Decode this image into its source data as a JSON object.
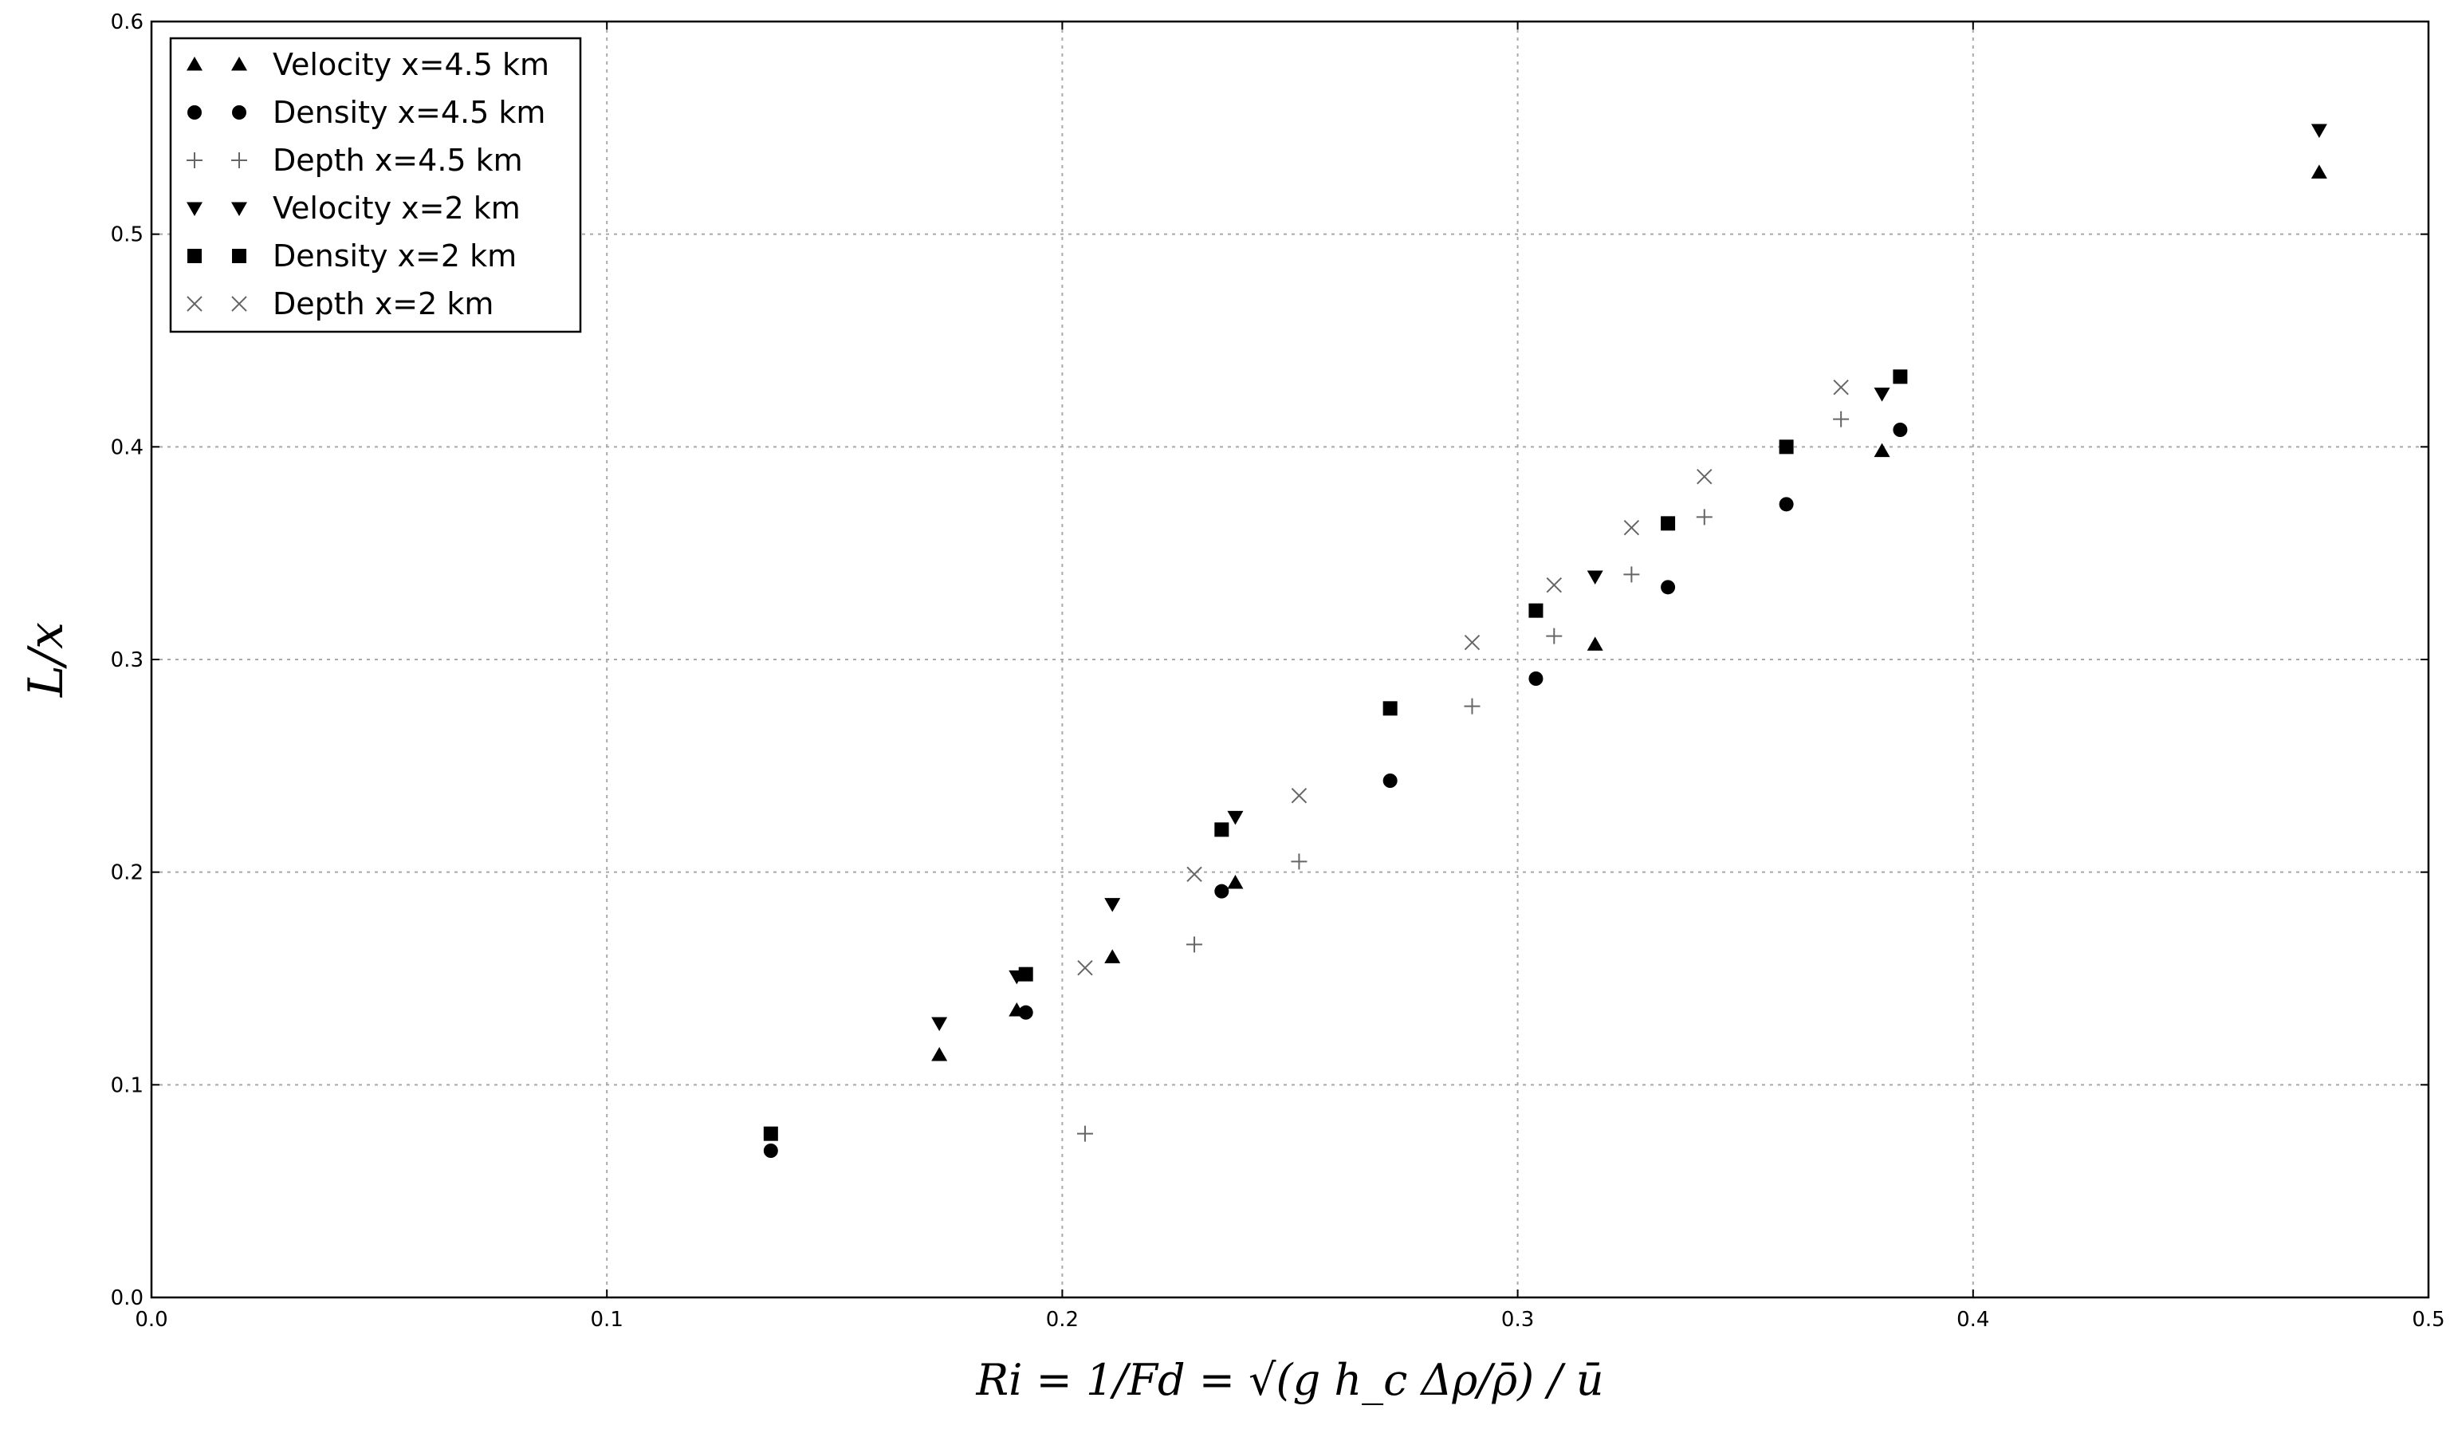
{
  "chart_data": {
    "type": "scatter",
    "title": "",
    "xlabel": "Ri = 1/Fd = √(g h_c Δρ/ρ̄) / ū",
    "ylabel": "L/x",
    "xlim": [
      0.0,
      0.5
    ],
    "ylim": [
      0.0,
      0.6
    ],
    "xticks": [
      "0.0",
      "0.1",
      "0.2",
      "0.3",
      "0.4",
      "0.5"
    ],
    "yticks": [
      "0.0",
      "0.1",
      "0.2",
      "0.3",
      "0.4",
      "0.5",
      "0.6"
    ],
    "grid": true,
    "legend_position": "top-left",
    "colors": {
      "markers": "#000000",
      "light_markers": "#666666",
      "grid": "#a9a9a9"
    },
    "series": [
      {
        "name": "Velocity x=4.5 km",
        "marker": "triangle-up",
        "points": [
          [
            0.173,
            0.114
          ],
          [
            0.19,
            0.135
          ],
          [
            0.211,
            0.16
          ],
          [
            0.238,
            0.195
          ],
          [
            0.317,
            0.307
          ],
          [
            0.38,
            0.398
          ],
          [
            0.476,
            0.529
          ]
        ]
      },
      {
        "name": "Density x=4.5 km",
        "marker": "circle",
        "points": [
          [
            0.136,
            0.069
          ],
          [
            0.192,
            0.134
          ],
          [
            0.235,
            0.191
          ],
          [
            0.272,
            0.243
          ],
          [
            0.304,
            0.291
          ],
          [
            0.333,
            0.334
          ],
          [
            0.359,
            0.373
          ],
          [
            0.384,
            0.408
          ]
        ]
      },
      {
        "name": "Depth x=4.5 km",
        "marker": "plus",
        "points": [
          [
            0.205,
            0.077
          ],
          [
            0.229,
            0.166
          ],
          [
            0.252,
            0.205
          ],
          [
            0.29,
            0.278
          ],
          [
            0.308,
            0.311
          ],
          [
            0.325,
            0.34
          ],
          [
            0.341,
            0.367
          ],
          [
            0.371,
            0.413
          ]
        ]
      },
      {
        "name": "Velocity x=2 km",
        "marker": "triangle-down",
        "points": [
          [
            0.173,
            0.129
          ],
          [
            0.19,
            0.151
          ],
          [
            0.211,
            0.185
          ],
          [
            0.238,
            0.226
          ],
          [
            0.317,
            0.339
          ],
          [
            0.38,
            0.425
          ],
          [
            0.476,
            0.549
          ]
        ]
      },
      {
        "name": "Density x=2 km",
        "marker": "square",
        "points": [
          [
            0.136,
            0.077
          ],
          [
            0.192,
            0.152
          ],
          [
            0.235,
            0.22
          ],
          [
            0.272,
            0.277
          ],
          [
            0.304,
            0.323
          ],
          [
            0.333,
            0.364
          ],
          [
            0.359,
            0.4
          ],
          [
            0.384,
            0.433
          ]
        ]
      },
      {
        "name": "Depth x=2 km",
        "marker": "x",
        "points": [
          [
            0.205,
            0.155
          ],
          [
            0.229,
            0.199
          ],
          [
            0.252,
            0.236
          ],
          [
            0.29,
            0.308
          ],
          [
            0.308,
            0.335
          ],
          [
            0.325,
            0.362
          ],
          [
            0.341,
            0.386
          ],
          [
            0.371,
            0.428
          ]
        ]
      }
    ]
  }
}
